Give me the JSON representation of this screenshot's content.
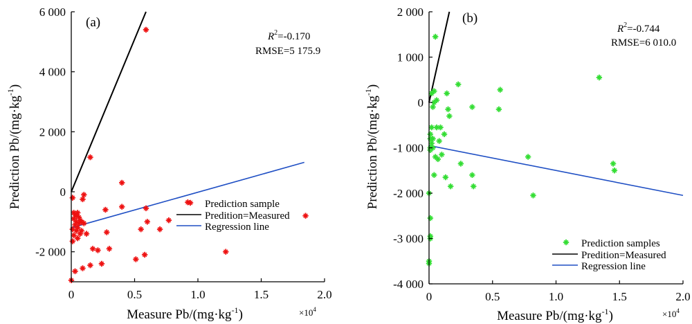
{
  "chart_data": [
    {
      "type": "scatter",
      "panel_label": "(a)",
      "xlabel": "Measure Pb/(mg·kg",
      "xlabel_sup": "-1",
      "xlabel_close": ")",
      "ylabel": "Prediction Pb/(mg·kg",
      "ylabel_sup": "-1",
      "ylabel_close": ")",
      "x_multiplier_base": "×10",
      "x_multiplier_exp": "4",
      "xlim": [
        0,
        2.0
      ],
      "ylim": [
        -3000,
        6000
      ],
      "x_ticks": [
        0,
        0.5,
        1.0,
        1.5,
        2.0
      ],
      "x_tick_labels": [
        "0",
        "0.5",
        "1.0",
        "1.5",
        "2.0"
      ],
      "y_ticks": [
        -2000,
        0,
        2000,
        4000,
        6000
      ],
      "y_tick_labels": [
        "-2 000",
        "0",
        "2 000",
        "4 000",
        "6 000"
      ],
      "r2_symbol": "R",
      "r2_sup": "2",
      "r2_value": "=-0.170",
      "rmse_text": "RMSE=5 175.9",
      "legend": {
        "scatter_label": "Prediction sample",
        "identity_label": "Predition=Measured",
        "regression_label": "Regression line"
      },
      "colors": {
        "points": "#ee1111",
        "identity": "#000000",
        "regression": "#1f4fc4"
      },
      "identity_line": {
        "x": [
          0,
          0.59
        ],
        "y": [
          0,
          6000
        ]
      },
      "regression_line": {
        "x": [
          0,
          1.84
        ],
        "y": [
          -1200,
          980
        ]
      },
      "points": [
        {
          "x": 0.0,
          "y": -2950
        },
        {
          "x": 0.01,
          "y": -1650
        },
        {
          "x": 0.01,
          "y": -1250
        },
        {
          "x": 0.01,
          "y": -200
        },
        {
          "x": 0.02,
          "y": -1450
        },
        {
          "x": 0.02,
          "y": -900
        },
        {
          "x": 0.02,
          "y": -700
        },
        {
          "x": 0.03,
          "y": -1100
        },
        {
          "x": 0.03,
          "y": -750
        },
        {
          "x": 0.03,
          "y": -2650
        },
        {
          "x": 0.04,
          "y": -1300
        },
        {
          "x": 0.04,
          "y": -1000
        },
        {
          "x": 0.04,
          "y": -800
        },
        {
          "x": 0.05,
          "y": -1200
        },
        {
          "x": 0.05,
          "y": -700
        },
        {
          "x": 0.05,
          "y": -1550
        },
        {
          "x": 0.06,
          "y": -1050
        },
        {
          "x": 0.06,
          "y": -850
        },
        {
          "x": 0.07,
          "y": -1400
        },
        {
          "x": 0.07,
          "y": -950
        },
        {
          "x": 0.08,
          "y": -1300
        },
        {
          "x": 0.08,
          "y": -1000
        },
        {
          "x": 0.09,
          "y": -250
        },
        {
          "x": 0.09,
          "y": -2550
        },
        {
          "x": 0.1,
          "y": -1050
        },
        {
          "x": 0.1,
          "y": -100
        },
        {
          "x": 0.12,
          "y": -1400
        },
        {
          "x": 0.15,
          "y": -2450
        },
        {
          "x": 0.15,
          "y": 1150
        },
        {
          "x": 0.17,
          "y": -1900
        },
        {
          "x": 0.21,
          "y": -1950
        },
        {
          "x": 0.24,
          "y": -2400
        },
        {
          "x": 0.27,
          "y": -600
        },
        {
          "x": 0.28,
          "y": -1350
        },
        {
          "x": 0.3,
          "y": -1900
        },
        {
          "x": 0.4,
          "y": 300
        },
        {
          "x": 0.4,
          "y": -500
        },
        {
          "x": 0.51,
          "y": -2250
        },
        {
          "x": 0.55,
          "y": -1250
        },
        {
          "x": 0.58,
          "y": -2100
        },
        {
          "x": 0.59,
          "y": -550
        },
        {
          "x": 0.6,
          "y": -1000
        },
        {
          "x": 0.59,
          "y": 5400
        },
        {
          "x": 0.7,
          "y": -1250
        },
        {
          "x": 0.77,
          "y": -950
        },
        {
          "x": 0.92,
          "y": -350
        },
        {
          "x": 1.22,
          "y": -2000
        },
        {
          "x": 1.85,
          "y": -800
        }
      ]
    },
    {
      "type": "scatter",
      "panel_label": "(b)",
      "xlabel": "Measure Pb/(mg·kg",
      "xlabel_sup": "-1",
      "xlabel_close": ")",
      "ylabel": "Prediction Pb/(mg·kg",
      "ylabel_sup": "-1",
      "ylabel_close": ")",
      "x_multiplier_base": "×10",
      "x_multiplier_exp": "4",
      "xlim": [
        0,
        2.0
      ],
      "ylim": [
        -4000,
        2000
      ],
      "x_ticks": [
        0,
        0.5,
        1.0,
        1.5,
        2.0
      ],
      "x_tick_labels": [
        "0",
        "0.5",
        "1.0",
        "1.5",
        "2.0"
      ],
      "y_ticks": [
        -4000,
        -3000,
        -2000,
        -1000,
        0,
        1000,
        2000
      ],
      "y_tick_labels": [
        "-4 000",
        "-3 000",
        "-2 000",
        "-1 000",
        "0",
        "1 000",
        "2 000"
      ],
      "r2_symbol": "R",
      "r2_sup": "2",
      "r2_value": "=-0.744",
      "rmse_text": "RMSE=6 010.0",
      "legend": {
        "scatter_label": "Prediction samples",
        "identity_label": "Predition=Measured",
        "regression_label": "Regression line"
      },
      "colors": {
        "points": "#33dd33",
        "identity": "#000000",
        "regression": "#1f4fc4"
      },
      "identity_line": {
        "x": [
          0,
          0.16
        ],
        "y": [
          0,
          2000
        ]
      },
      "regression_line": {
        "x": [
          0,
          2.0
        ],
        "y": [
          -950,
          -2050
        ]
      },
      "points": [
        {
          "x": 0.0,
          "y": -2000
        },
        {
          "x": 0.0,
          "y": -3500
        },
        {
          "x": 0.0,
          "y": -3550
        },
        {
          "x": 0.01,
          "y": -2550
        },
        {
          "x": 0.01,
          "y": -3000
        },
        {
          "x": 0.01,
          "y": -2950
        },
        {
          "x": 0.01,
          "y": -1000
        },
        {
          "x": 0.01,
          "y": -1050
        },
        {
          "x": 0.01,
          "y": -800
        },
        {
          "x": 0.01,
          "y": -700
        },
        {
          "x": 0.02,
          "y": -550
        },
        {
          "x": 0.02,
          "y": -900
        },
        {
          "x": 0.02,
          "y": 200
        },
        {
          "x": 0.03,
          "y": -100
        },
        {
          "x": 0.03,
          "y": -800
        },
        {
          "x": 0.03,
          "y": -1000
        },
        {
          "x": 0.04,
          "y": 0
        },
        {
          "x": 0.04,
          "y": 250
        },
        {
          "x": 0.04,
          "y": -1600
        },
        {
          "x": 0.05,
          "y": 1450
        },
        {
          "x": 0.05,
          "y": -1200
        },
        {
          "x": 0.06,
          "y": 50
        },
        {
          "x": 0.06,
          "y": -550
        },
        {
          "x": 0.07,
          "y": -1250
        },
        {
          "x": 0.08,
          "y": -850
        },
        {
          "x": 0.09,
          "y": -550
        },
        {
          "x": 0.1,
          "y": -1150
        },
        {
          "x": 0.12,
          "y": -700
        },
        {
          "x": 0.13,
          "y": -1650
        },
        {
          "x": 0.14,
          "y": 200
        },
        {
          "x": 0.15,
          "y": -150
        },
        {
          "x": 0.16,
          "y": -300
        },
        {
          "x": 0.17,
          "y": -1850
        },
        {
          "x": 0.23,
          "y": 400
        },
        {
          "x": 0.25,
          "y": -1350
        },
        {
          "x": 0.34,
          "y": -1600
        },
        {
          "x": 0.35,
          "y": -1850
        },
        {
          "x": 0.34,
          "y": -100
        },
        {
          "x": 0.55,
          "y": -150
        },
        {
          "x": 0.56,
          "y": 280
        },
        {
          "x": 0.78,
          "y": -1200
        },
        {
          "x": 0.82,
          "y": -2050
        },
        {
          "x": 1.34,
          "y": 550
        },
        {
          "x": 1.45,
          "y": -1350
        },
        {
          "x": 1.46,
          "y": -1500
        }
      ]
    }
  ]
}
